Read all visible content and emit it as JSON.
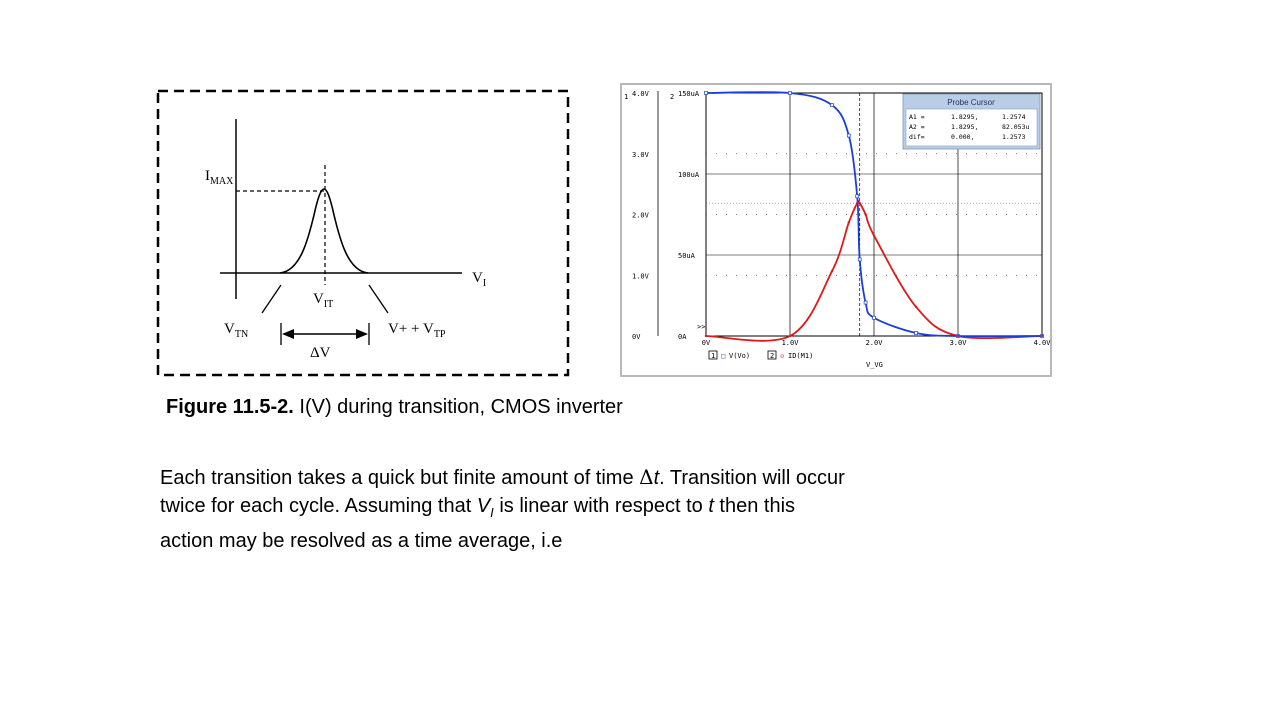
{
  "sketch": {
    "labels": {
      "imax_main": "I",
      "imax_sub": "MAX",
      "vi_main": "V",
      "vi_sub": "I",
      "vit_main": "V",
      "vit_sub": "IT",
      "vtn_main": "V",
      "vtn_sub": "TN",
      "vtp_main": "V+ + V",
      "vtp_sub": "TP",
      "dv": "ΔV"
    }
  },
  "probe": {
    "corner_left": "1",
    "corner_right": "2",
    "left_axis_ticks": [
      "4.0V",
      "3.0V",
      "2.0V",
      "1.0V",
      "0V"
    ],
    "right_axis_ticks": [
      "150uA",
      "100uA",
      "50uA",
      "0A"
    ],
    "x_ticks": [
      "0V",
      "1.0V",
      "2.0V",
      "3.0V",
      "4.0V"
    ],
    "x_label": "V_VG",
    "marker": ">>",
    "legend": [
      {
        "box": "1",
        "symbol": "□",
        "text": "V(Vo)",
        "color": "#1a3fd6"
      },
      {
        "box": "2",
        "symbol": "◇",
        "text": "ID(M1)",
        "color": "#e01818"
      }
    ],
    "cursor": {
      "title": "Probe Cursor",
      "rows": [
        [
          "A1 =",
          "1.8295,",
          "1.2574"
        ],
        [
          "A2 =",
          "1.8295,",
          "82.053u"
        ],
        [
          "dif=",
          "0.000,",
          "1.2573"
        ]
      ]
    }
  },
  "caption": {
    "label": "Figure 11.5-2.",
    "text": " I(V) during transition, CMOS inverter"
  },
  "paragraph": {
    "l1a": "Each transition takes a quick but finite amount of time ",
    "l1_delta": "Δ",
    "l1_t": "t",
    "l1b": ".  Transition will occur",
    "l2a": "twice for each cycle.  Assuming that ",
    "l2_v": "V",
    "l2_sub": "I",
    "l2b": " is linear with respect to ",
    "l2_t": "t",
    "l2c": " then this",
    "l3": "action may be resolved as a time average, i.e"
  },
  "colors": {
    "vo_curve": "#1a3fd6",
    "id_curve": "#e01818",
    "cursor_bg": "#b9cde6"
  },
  "chart_data": {
    "type": "line",
    "x": [
      0,
      1.0,
      1.5,
      1.7,
      1.8,
      1.83,
      1.9,
      2.0,
      2.5,
      3.0,
      4.0
    ],
    "series": [
      {
        "name": "V(Vo)",
        "values": [
          4.0,
          4.0,
          3.8,
          3.3,
          2.3,
          1.26,
          0.55,
          0.3,
          0.05,
          0,
          0
        ]
      },
      {
        "name": "ID(M1)",
        "values": [
          0,
          0,
          40,
          70,
          82,
          82,
          75,
          62,
          18,
          0,
          0
        ]
      }
    ],
    "xlabel": "V_VG",
    "xlim": [
      0,
      4.0
    ],
    "ylim": [
      0,
      4.0
    ],
    "y2lim": [
      0,
      150
    ],
    "grid": true
  }
}
